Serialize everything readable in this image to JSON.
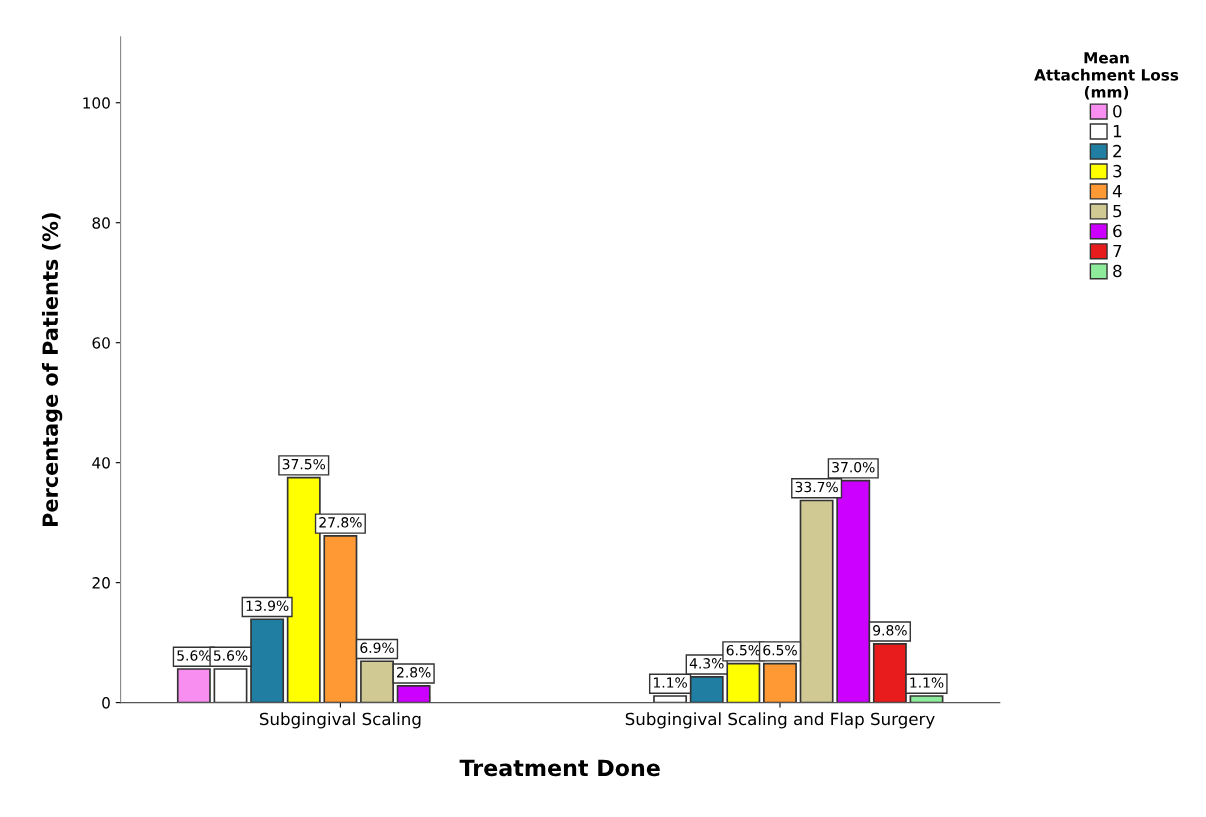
{
  "chart_data": {
    "type": "bar",
    "xlabel": "Treatment Done",
    "ylabel": "Percentage of Patients (%)",
    "legend_title": "Mean\nAttachment Loss\n(mm)",
    "legend": "top right",
    "grid": false,
    "categories": [
      "Subgingival Scaling",
      "Subgingival Scaling and Flap Surgery"
    ],
    "ylim": [
      0,
      111
    ],
    "yticks": [
      0,
      20,
      40,
      60,
      80,
      100
    ],
    "series": [
      {
        "name": "0",
        "color": "#f78ef0",
        "values": [
          5.6,
          null
        ],
        "value_labels": [
          "5.6%",
          null
        ]
      },
      {
        "name": "1",
        "color": "#ffffff",
        "values": [
          5.6,
          1.1
        ],
        "value_labels": [
          "5.6%",
          "1.1%"
        ]
      },
      {
        "name": "2",
        "color": "#1f7ea1",
        "values": [
          13.9,
          4.3
        ],
        "value_labels": [
          "13.9%",
          "4.3%"
        ]
      },
      {
        "name": "3",
        "color": "#ffff00",
        "values": [
          37.5,
          6.5
        ],
        "value_labels": [
          "37.5%",
          "6.5%"
        ]
      },
      {
        "name": "4",
        "color": "#ff9933",
        "values": [
          27.8,
          6.5
        ],
        "value_labels": [
          "27.8%",
          "6.5%"
        ]
      },
      {
        "name": "5",
        "color": "#d1c994",
        "values": [
          6.9,
          33.7
        ],
        "value_labels": [
          "6.9%",
          "33.7%"
        ]
      },
      {
        "name": "6",
        "color": "#cc00ff",
        "values": [
          2.8,
          37.0
        ],
        "value_labels": [
          "2.8%",
          "37.0%"
        ]
      },
      {
        "name": "7",
        "color": "#e81c1c",
        "values": [
          null,
          9.8
        ],
        "value_labels": [
          null,
          "9.8%"
        ]
      },
      {
        "name": "8",
        "color": "#8eeb9b",
        "values": [
          null,
          1.1
        ],
        "value_labels": [
          null,
          "1.1%"
        ]
      }
    ]
  }
}
